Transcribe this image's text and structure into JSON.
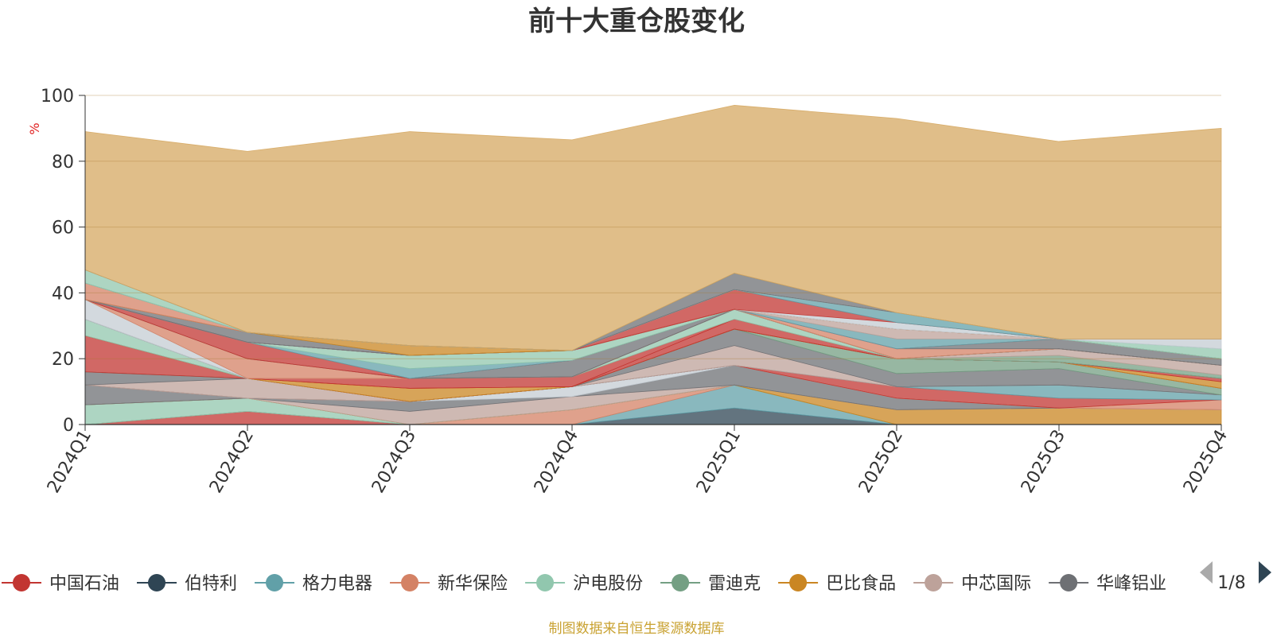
{
  "chart_data": {
    "type": "area",
    "stacked": true,
    "title": "前十大重仓股变化",
    "unit_label": "%",
    "categories": [
      "2024Q1",
      "2024Q2",
      "2024Q3",
      "2024Q4",
      "2025Q1",
      "2025Q2",
      "2025Q3",
      "2025Q4"
    ],
    "ylim": [
      0,
      100
    ],
    "yticks": [
      0,
      20,
      40,
      60,
      80,
      100
    ],
    "grid": true,
    "series": [
      {
        "name": "中国石油",
        "color": "#c23531",
        "values": [
          0,
          4,
          0,
          0,
          0,
          0,
          0,
          0
        ]
      },
      {
        "name": "伯特利",
        "color": "#2f4554",
        "values": [
          0,
          0,
          0,
          0,
          5,
          0,
          0,
          0
        ]
      },
      {
        "name": "格力电器",
        "color": "#61a0a8",
        "values": [
          0,
          0,
          0,
          0,
          7,
          0,
          0,
          0
        ]
      },
      {
        "name": "新华保险",
        "color": "#d48265",
        "values": [
          0,
          0,
          0,
          4.5,
          0,
          0,
          0,
          0
        ]
      },
      {
        "name": "沪电股份",
        "color": "#91c7ae",
        "values": [
          6,
          4,
          0,
          0,
          0,
          0,
          0,
          0
        ]
      },
      {
        "name": "雷迪克",
        "color": "#749f83",
        "values": [
          0,
          0,
          0,
          0,
          0,
          0,
          0,
          0
        ]
      },
      {
        "name": "巴比食品",
        "color": "#ca8622",
        "values": [
          0,
          0,
          0,
          0,
          0,
          4.5,
          5,
          4.5
        ]
      },
      {
        "name": "中芯国际",
        "color": "#bda29a",
        "values": [
          0,
          0,
          4,
          4,
          0,
          0,
          0,
          0
        ]
      },
      {
        "name": "华峰铝业",
        "color": "#6e7074",
        "values": [
          6,
          0,
          3,
          0,
          6,
          3.5,
          0,
          0
        ]
      },
      {
        "name": "",
        "color": "#c4ccd3",
        "values": [
          0,
          0,
          0,
          3,
          0,
          0,
          0,
          0
        ]
      },
      {
        "name": "",
        "color": "#d48265",
        "values": [
          0,
          0,
          0,
          0,
          0,
          0,
          0,
          3
        ]
      },
      {
        "name": "",
        "color": "#c23531",
        "values": [
          0,
          0,
          0,
          0,
          0,
          3.5,
          3,
          0
        ]
      },
      {
        "name": "",
        "color": "#61a0a8",
        "values": [
          0,
          0,
          0,
          0,
          0,
          0,
          4,
          1.5
        ]
      },
      {
        "name": "",
        "color": "#bda29a",
        "values": [
          0,
          6,
          0,
          0,
          6,
          0,
          0,
          0
        ]
      },
      {
        "name": "",
        "color": "#6e7074",
        "values": [
          4,
          0,
          0,
          0,
          5,
          4,
          5,
          0
        ]
      },
      {
        "name": "",
        "color": "#749f83",
        "values": [
          0,
          0,
          0,
          0,
          0,
          4.5,
          2,
          2
        ]
      },
      {
        "name": "",
        "color": "#c23531",
        "values": [
          11,
          0,
          0,
          0,
          0,
          0,
          0,
          0
        ]
      },
      {
        "name": "",
        "color": "#ca8622",
        "values": [
          0,
          0,
          4,
          0,
          0,
          0,
          0,
          2
        ]
      },
      {
        "name": "",
        "color": "#c23531",
        "values": [
          0,
          0,
          0,
          0,
          3,
          0,
          0,
          1
        ]
      },
      {
        "name": "",
        "color": "#c23531",
        "values": [
          0,
          0,
          3,
          3,
          0,
          0,
          0,
          0
        ]
      },
      {
        "name": "",
        "color": "#91c7ae",
        "values": [
          5,
          0,
          0,
          0,
          3,
          0,
          0,
          0
        ]
      },
      {
        "name": "",
        "color": "#749f83",
        "values": [
          0,
          0,
          0,
          0,
          0,
          0,
          2,
          1
        ]
      },
      {
        "name": "",
        "color": "#bda29a",
        "values": [
          0,
          0,
          0,
          0,
          0,
          0,
          2,
          3
        ]
      },
      {
        "name": "",
        "color": "#6e7074",
        "values": [
          0,
          0,
          0,
          0,
          0,
          0,
          0,
          0
        ]
      },
      {
        "name": "",
        "color": "#c4ccd3",
        "values": [
          6,
          0,
          0,
          0,
          0,
          0,
          0,
          0
        ]
      },
      {
        "name": "",
        "color": "#d48265",
        "values": [
          0,
          6,
          0,
          0,
          0,
          0,
          0,
          0
        ]
      },
      {
        "name": "",
        "color": "#6e7074",
        "values": [
          0,
          0,
          0,
          5,
          0,
          0,
          0,
          0
        ]
      },
      {
        "name": "",
        "color": "#c23531",
        "values": [
          0,
          5,
          0,
          0,
          0,
          0,
          0,
          0
        ]
      },
      {
        "name": "",
        "color": "#61a0a8",
        "values": [
          0,
          0,
          3,
          0,
          0,
          0,
          0,
          0
        ]
      },
      {
        "name": "",
        "color": "#91c7ae",
        "values": [
          0,
          0,
          4,
          3,
          0,
          0,
          0,
          0
        ]
      },
      {
        "name": "",
        "color": "#d48265",
        "values": [
          0,
          0,
          0,
          0,
          0,
          3,
          0,
          0
        ]
      },
      {
        "name": "",
        "color": "#6e7074",
        "values": [
          0,
          0,
          0,
          0,
          0,
          0,
          3,
          2
        ]
      },
      {
        "name": "",
        "color": "#c4ccd3",
        "values": [
          0,
          0,
          0,
          0,
          0,
          0,
          0,
          0
        ]
      },
      {
        "name": "",
        "color": "#c23531",
        "values": [
          0,
          0,
          0,
          0,
          0,
          0,
          0,
          0
        ]
      },
      {
        "name": "",
        "color": "#61a0a8",
        "values": [
          0,
          0,
          0,
          0,
          0,
          3,
          0,
          0
        ]
      },
      {
        "name": "",
        "color": "#bda29a",
        "values": [
          0,
          0,
          0,
          0,
          0,
          3,
          0,
          0
        ]
      },
      {
        "name": "",
        "color": "#6e7074",
        "values": [
          0,
          3,
          0,
          0,
          0,
          0,
          0,
          0
        ]
      },
      {
        "name": "",
        "color": "#ca8622",
        "values": [
          0,
          0,
          3,
          0,
          0,
          0,
          0,
          0
        ]
      },
      {
        "name": "",
        "color": "#d48265",
        "values": [
          5,
          0,
          0,
          0,
          0,
          0,
          0,
          0
        ]
      },
      {
        "name": "",
        "color": "#c4ccd3",
        "values": [
          0,
          0,
          0,
          0,
          0,
          2,
          0,
          0
        ]
      },
      {
        "name": "",
        "color": "#c23531",
        "values": [
          0,
          0,
          0,
          0,
          6,
          0,
          0,
          0
        ]
      },
      {
        "name": "",
        "color": "#61a0a8",
        "values": [
          0,
          0,
          0,
          0,
          0,
          3,
          0,
          0
        ]
      },
      {
        "name": "",
        "color": "#91c7ae",
        "values": [
          0,
          0,
          0,
          0,
          0,
          0,
          0,
          3
        ]
      },
      {
        "name": "",
        "color": "#91c7ae",
        "values": [
          4,
          0,
          0,
          0,
          0,
          0,
          0,
          0
        ]
      },
      {
        "name": "",
        "color": "#c4ccd3",
        "values": [
          0,
          0,
          0,
          0,
          0,
          0,
          0,
          3
        ]
      },
      {
        "name": "",
        "color": "#6e7074",
        "values": [
          0,
          0,
          0,
          0,
          5,
          0,
          0,
          0
        ]
      },
      {
        "name": "",
        "color": "#d6a862",
        "values": [
          42,
          55,
          65,
          64,
          51,
          59,
          60,
          64
        ]
      }
    ]
  },
  "legend": {
    "items": [
      {
        "name": "中国石油",
        "color": "#c23531"
      },
      {
        "name": "伯特利",
        "color": "#2f4554"
      },
      {
        "name": "格力电器",
        "color": "#61a0a8"
      },
      {
        "name": "新华保险",
        "color": "#d48265"
      },
      {
        "name": "沪电股份",
        "color": "#91c7ae"
      },
      {
        "name": "雷迪克",
        "color": "#749f83"
      },
      {
        "name": "巴比食品",
        "color": "#ca8622"
      },
      {
        "name": "中芯国际",
        "color": "#bda29a"
      },
      {
        "name": "华峰铝业",
        "color": "#6e7074"
      }
    ],
    "page": "1/8",
    "prev_icon": "triangle-left-icon",
    "next_icon": "triangle-right-icon"
  },
  "source_note": "制图数据来自恒生聚源数据库"
}
